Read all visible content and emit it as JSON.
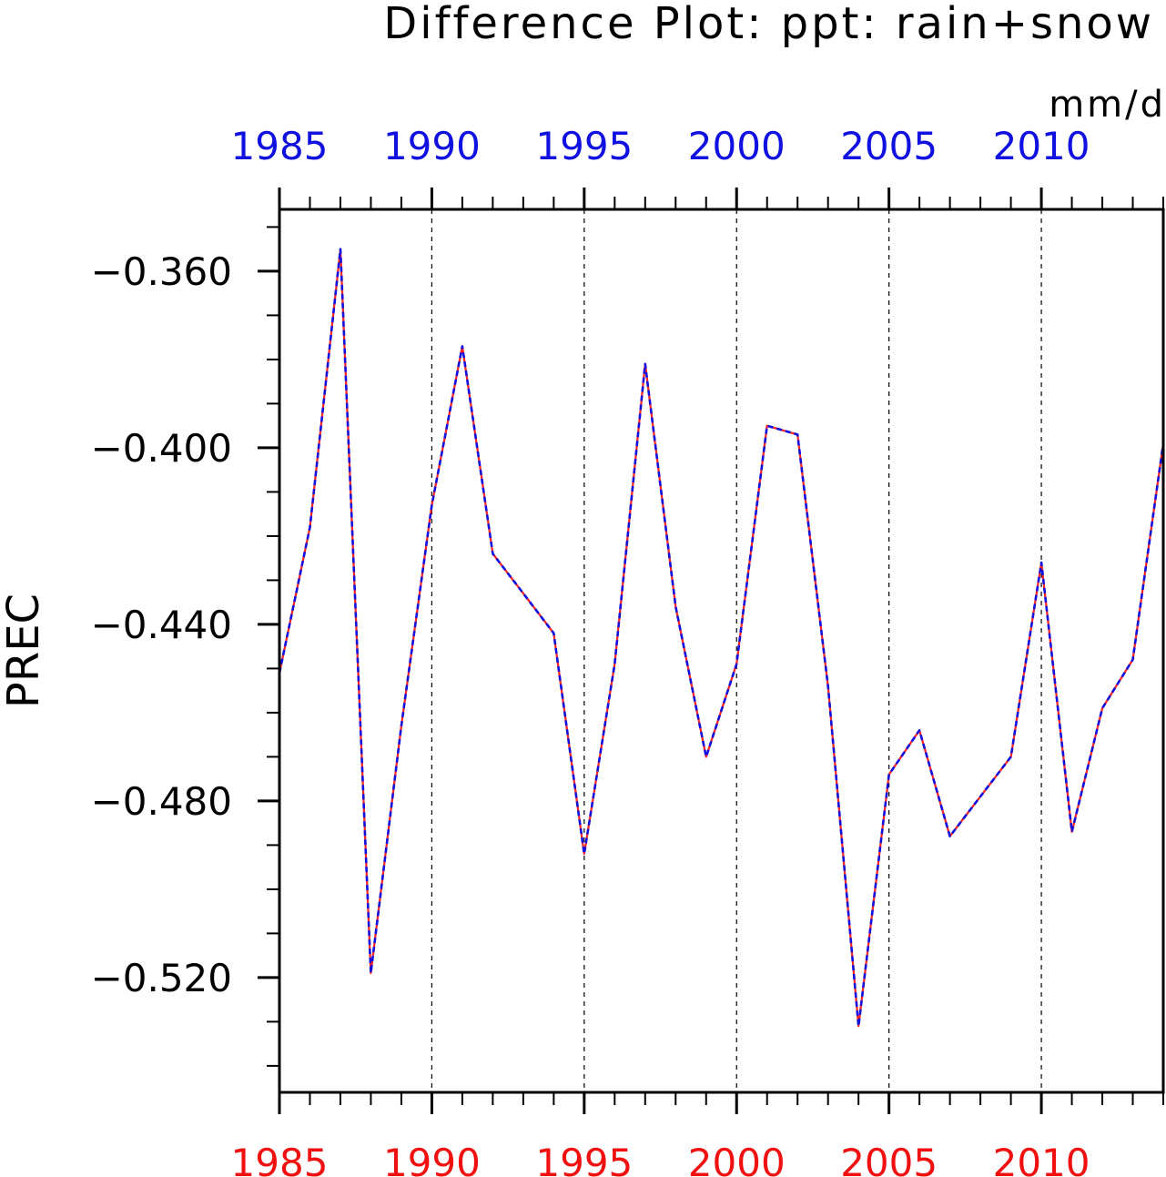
{
  "chart_data": {
    "type": "line",
    "title": "Difference Plot: ppt: rain+snow",
    "units": "mm/d",
    "xlabel": "",
    "ylabel": "PREC",
    "xlim": [
      1985,
      2014
    ],
    "ylim": [
      -0.546,
      -0.346
    ],
    "x_ticks": [
      1985,
      1990,
      1995,
      2000,
      2005,
      2010
    ],
    "x_tick_labels": [
      "1985",
      "1990",
      "1995",
      "2000",
      "2005",
      "2010"
    ],
    "y_ticks": [
      -0.36,
      -0.4,
      -0.44,
      -0.48,
      -0.52
    ],
    "y_tick_labels": [
      "−0.360",
      "−0.400",
      "−0.440",
      "−0.480",
      "−0.520"
    ],
    "grid": "vertical-dashed",
    "top_axis_color": "#1010e0",
    "bottom_axis_color": "#f01010",
    "x": [
      1985,
      1986,
      1987,
      1988,
      1989,
      1990,
      1991,
      1992,
      1993,
      1994,
      1995,
      1996,
      1997,
      1998,
      1999,
      2000,
      2001,
      2002,
      2003,
      2004,
      2005,
      2006,
      2007,
      2008,
      2009,
      2010,
      2011,
      2012,
      2013,
      2014
    ],
    "series": [
      {
        "color": "#ff2020",
        "style": "solid",
        "values": [
          -0.451,
          -0.418,
          -0.355,
          -0.519,
          -0.463,
          -0.413,
          -0.377,
          -0.424,
          -0.433,
          -0.442,
          -0.492,
          -0.449,
          -0.381,
          -0.436,
          -0.47,
          -0.449,
          -0.395,
          -0.397,
          -0.454,
          -0.531,
          -0.474,
          -0.464,
          -0.488,
          -0.479,
          -0.47,
          -0.426,
          -0.487,
          -0.459,
          -0.448,
          -0.399
        ]
      },
      {
        "color": "#1010e0",
        "style": "dashed",
        "values": [
          -0.451,
          -0.418,
          -0.355,
          -0.519,
          -0.463,
          -0.413,
          -0.377,
          -0.424,
          -0.433,
          -0.442,
          -0.492,
          -0.449,
          -0.381,
          -0.436,
          -0.47,
          -0.449,
          -0.395,
          -0.397,
          -0.454,
          -0.531,
          -0.474,
          -0.464,
          -0.488,
          -0.479,
          -0.47,
          -0.426,
          -0.487,
          -0.459,
          -0.448,
          -0.399
        ]
      }
    ]
  }
}
